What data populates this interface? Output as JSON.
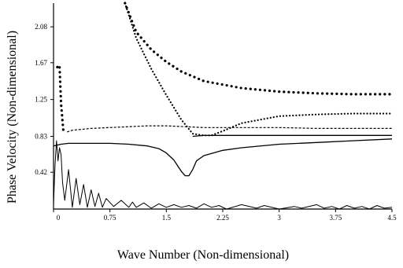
{
  "chart_data": {
    "type": "line",
    "title": "",
    "xlabel": "Wave Number (Non-dimensional)",
    "ylabel": "Phase Velocity (Non-dimensional)",
    "xlim": [
      0,
      4.5
    ],
    "ylim": [
      0,
      2.35
    ],
    "x_ticks": [
      0,
      0.75,
      1.5,
      2.25,
      3,
      3.75,
      4.5
    ],
    "x_tick_labels": [
      "0",
      "0.75",
      "1.5",
      "2.25",
      "3",
      "3.75",
      "4.5"
    ],
    "y_ticks": [
      0.42,
      0.83,
      1.25,
      1.67,
      2.08
    ],
    "y_tick_labels": [
      "0.42",
      "0.83",
      "1.25",
      "1.67",
      "2.08"
    ],
    "grid": false,
    "legend": "none",
    "series": [
      {
        "style": "dotted-thick",
        "color": "#000000",
        "x": [
          0.95,
          1.1,
          1.3,
          1.5,
          1.7,
          2.0,
          2.5,
          3.0,
          3.5,
          4.0,
          4.5
        ],
        "y": [
          2.35,
          2.02,
          1.82,
          1.68,
          1.57,
          1.46,
          1.38,
          1.34,
          1.32,
          1.31,
          1.31
        ]
      },
      {
        "style": "dotted",
        "color": "#000000",
        "x": [
          0.95,
          1.1,
          1.3,
          1.5,
          1.7,
          1.85,
          2.0,
          2.1,
          2.25,
          2.5,
          3.0,
          3.5,
          4.0,
          4.5
        ],
        "y": [
          2.35,
          1.95,
          1.6,
          1.3,
          1.02,
          0.86,
          0.84,
          0.84,
          0.89,
          0.98,
          1.06,
          1.08,
          1.09,
          1.09
        ]
      },
      {
        "style": "dashed",
        "color": "#000000",
        "x": [
          0.18,
          0.25,
          0.5,
          0.75,
          1.0,
          1.25,
          1.5,
          1.75,
          2.0,
          2.5,
          3.0,
          3.5,
          4.0,
          4.5
        ],
        "y": [
          0.88,
          0.9,
          0.92,
          0.93,
          0.94,
          0.95,
          0.95,
          0.94,
          0.93,
          0.93,
          0.93,
          0.92,
          0.92,
          0.92
        ]
      },
      {
        "style": "solid",
        "color": "#000000",
        "x": [
          0.0,
          0.1,
          0.2,
          0.5,
          0.75,
          1.0,
          1.25,
          1.4,
          1.5,
          1.6,
          1.7,
          1.75,
          1.8,
          1.85,
          1.9,
          2.0,
          2.25,
          2.5,
          3.0,
          3.5,
          4.0,
          4.5
        ],
        "y": [
          0.72,
          0.74,
          0.75,
          0.75,
          0.75,
          0.74,
          0.72,
          0.69,
          0.64,
          0.56,
          0.43,
          0.38,
          0.38,
          0.45,
          0.55,
          0.61,
          0.67,
          0.7,
          0.74,
          0.76,
          0.78,
          0.8
        ]
      },
      {
        "style": "solid",
        "color": "#000000",
        "x": [
          1.85,
          2.0,
          2.25,
          2.5,
          2.75,
          3.0,
          3.25,
          3.5,
          3.75,
          4.0,
          4.25,
          4.5
        ],
        "y": [
          0.83,
          0.84,
          0.84,
          0.84,
          0.84,
          0.84,
          0.84,
          0.84,
          0.84,
          0.84,
          0.84,
          0.84
        ]
      },
      {
        "style": "dotted-thick",
        "color": "#000000",
        "x": [
          0.05,
          0.08,
          0.1,
          0.13
        ],
        "y": [
          1.62,
          1.64,
          1.2,
          0.9
        ]
      },
      {
        "style": "solid-thin",
        "color": "#000000",
        "x": [
          0.0,
          0.02,
          0.04,
          0.06,
          0.08,
          0.1,
          0.12,
          0.15,
          0.2,
          0.25,
          0.3,
          0.35,
          0.4,
          0.45,
          0.5,
          0.55,
          0.6,
          0.65,
          0.7,
          0.8,
          0.9,
          1.0,
          1.05,
          1.1,
          1.2,
          1.3,
          1.4,
          1.5,
          1.6,
          1.7,
          1.8,
          1.9,
          2.0,
          2.1,
          2.2,
          2.3,
          2.5,
          2.7,
          2.8,
          3.0,
          3.2,
          3.3,
          3.5,
          3.6,
          3.7,
          3.8,
          3.9,
          4.0,
          4.1,
          4.2,
          4.3,
          4.4,
          4.5
        ],
        "y": [
          0.05,
          0.5,
          0.78,
          0.55,
          0.7,
          0.62,
          0.3,
          0.1,
          0.45,
          0.02,
          0.35,
          0.05,
          0.28,
          0.02,
          0.22,
          0.03,
          0.18,
          0.02,
          0.12,
          0.03,
          0.1,
          0.02,
          0.08,
          0.02,
          0.07,
          0.01,
          0.06,
          0.02,
          0.05,
          0.02,
          0.04,
          0.01,
          0.06,
          0.02,
          0.04,
          0.0,
          0.05,
          0.01,
          0.04,
          0.0,
          0.03,
          0.01,
          0.05,
          0.01,
          0.03,
          0.0,
          0.04,
          0.01,
          0.03,
          0.0,
          0.04,
          0.01,
          0.02
        ]
      }
    ]
  }
}
